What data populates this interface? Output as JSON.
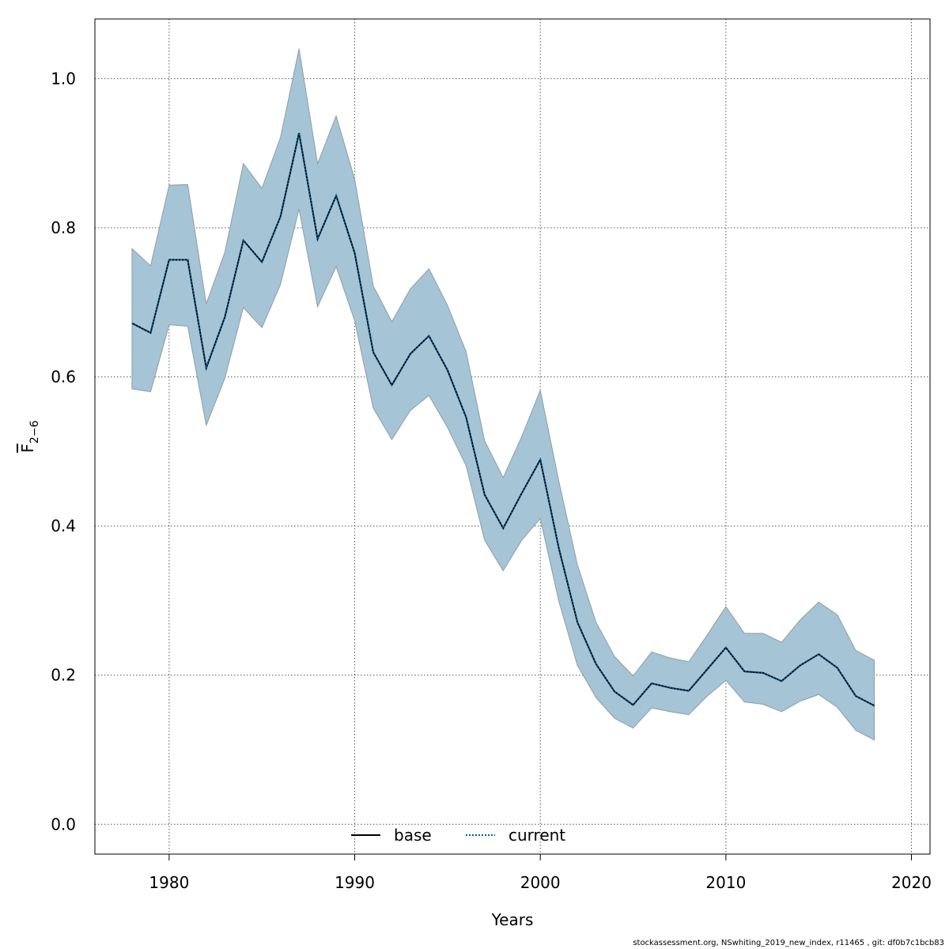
{
  "chart_data": {
    "type": "line",
    "xlabel": "Years",
    "ylabel_main": "F",
    "ylabel_sub": "2−6",
    "xlim": [
      1976,
      2021
    ],
    "ylim": [
      -0.04,
      1.08
    ],
    "xticks": [
      1980,
      1990,
      2000,
      2010,
      2020
    ],
    "yticks": [
      0.0,
      0.2,
      0.4,
      0.6,
      0.8,
      1.0
    ],
    "ytick_labels": [
      "0.0",
      "0.2",
      "0.4",
      "0.6",
      "0.8",
      "1.0"
    ],
    "grid": true,
    "legend_position": "bottom-center",
    "x": [
      1978,
      1979,
      1980,
      1981,
      1982,
      1983,
      1984,
      1985,
      1986,
      1987,
      1988,
      1989,
      1990,
      1991,
      1992,
      1993,
      1994,
      1995,
      1996,
      1997,
      1998,
      1999,
      2000,
      2001,
      2002,
      2003,
      2004,
      2005,
      2006,
      2007,
      2008,
      2009,
      2010,
      2011,
      2012,
      2013,
      2014,
      2015,
      2016,
      2017,
      2018
    ],
    "series": [
      {
        "name": "base",
        "style": "solid",
        "color": "#000000",
        "values": [
          0.672,
          0.659,
          0.757,
          0.757,
          0.612,
          0.68,
          0.783,
          0.754,
          0.815,
          0.927,
          0.785,
          0.843,
          0.766,
          0.633,
          0.589,
          0.631,
          0.655,
          0.609,
          0.546,
          0.442,
          0.397,
          0.444,
          0.489,
          0.37,
          0.271,
          0.215,
          0.178,
          0.16,
          0.189,
          0.183,
          0.179,
          0.208,
          0.237,
          0.205,
          0.203,
          0.192,
          0.213,
          0.228,
          0.21,
          0.172,
          0.159
        ]
      },
      {
        "name": "current",
        "style": "dotted",
        "color": "#005b96",
        "values": [
          0.672,
          0.659,
          0.757,
          0.757,
          0.612,
          0.68,
          0.783,
          0.754,
          0.815,
          0.927,
          0.785,
          0.843,
          0.766,
          0.633,
          0.589,
          0.631,
          0.655,
          0.609,
          0.546,
          0.442,
          0.397,
          0.444,
          0.489,
          0.37,
          0.271,
          0.215,
          0.178,
          0.16,
          0.189,
          0.183,
          0.179,
          0.208,
          0.237,
          0.205,
          0.203,
          0.192,
          0.213,
          0.228,
          0.21,
          0.172,
          0.159
        ]
      }
    ],
    "confidence_band": {
      "color": "#a5c4d5",
      "edge_color": "#8e9ea6",
      "upper": [
        0.772,
        0.749,
        0.857,
        0.858,
        0.698,
        0.767,
        0.886,
        0.853,
        0.921,
        1.04,
        0.886,
        0.95,
        0.865,
        0.722,
        0.674,
        0.718,
        0.745,
        0.696,
        0.634,
        0.514,
        0.465,
        0.52,
        0.582,
        0.46,
        0.348,
        0.271,
        0.225,
        0.199,
        0.231,
        0.223,
        0.218,
        0.254,
        0.292,
        0.256,
        0.256,
        0.244,
        0.274,
        0.298,
        0.281,
        0.233,
        0.22
      ],
      "lower": [
        0.584,
        0.58,
        0.67,
        0.668,
        0.535,
        0.598,
        0.693,
        0.666,
        0.724,
        0.825,
        0.694,
        0.748,
        0.675,
        0.558,
        0.516,
        0.555,
        0.575,
        0.532,
        0.481,
        0.381,
        0.34,
        0.381,
        0.41,
        0.299,
        0.213,
        0.17,
        0.142,
        0.129,
        0.156,
        0.151,
        0.147,
        0.172,
        0.193,
        0.164,
        0.161,
        0.151,
        0.165,
        0.174,
        0.157,
        0.126,
        0.113
      ]
    }
  },
  "footer": {
    "note": "stockassessment.org, NSwhiting_2019_new_index, r11465 , git: df0b7c1bcb83"
  }
}
